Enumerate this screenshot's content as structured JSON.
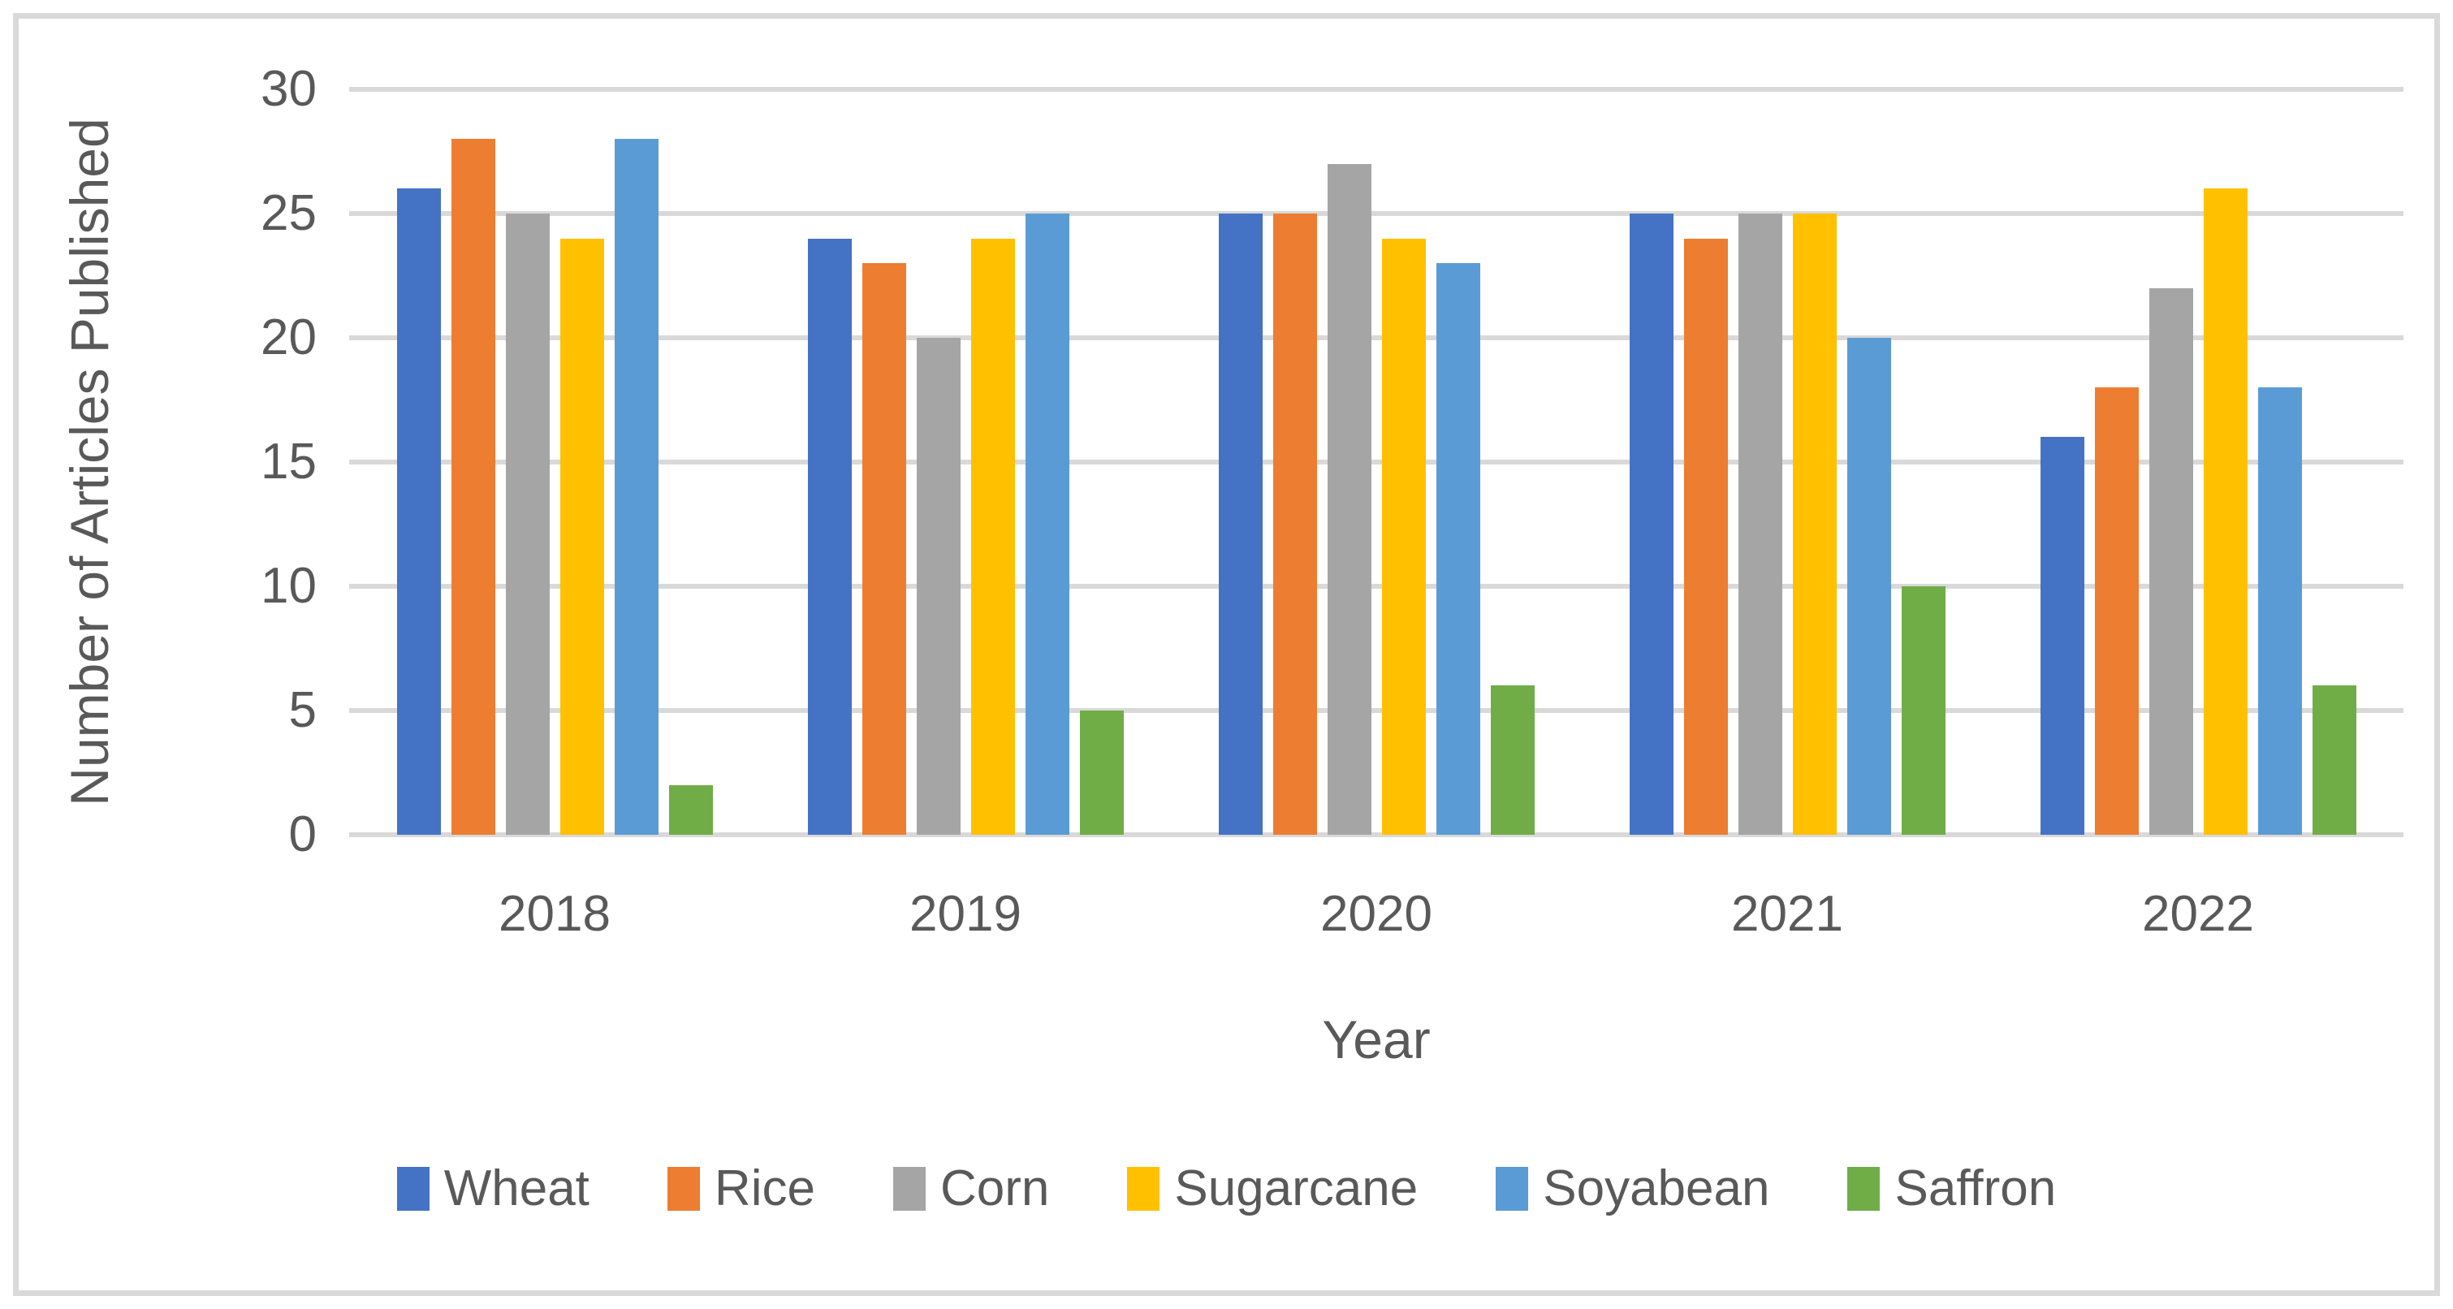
{
  "chart_data": {
    "type": "bar",
    "title": "",
    "xlabel": "Year",
    "ylabel": "Number of Articles Published",
    "categories": [
      "2018",
      "2019",
      "2020",
      "2021",
      "2022"
    ],
    "series": [
      {
        "name": "Wheat",
        "color": "#4472c4",
        "values": [
          26,
          24,
          25,
          25,
          16
        ]
      },
      {
        "name": "Rice",
        "color": "#ed7d31",
        "values": [
          28,
          23,
          25,
          24,
          18
        ]
      },
      {
        "name": "Corn",
        "color": "#a5a5a5",
        "values": [
          25,
          20,
          27,
          25,
          22
        ]
      },
      {
        "name": "Sugarcane",
        "color": "#ffc000",
        "values": [
          24,
          24,
          24,
          25,
          26
        ]
      },
      {
        "name": "Soyabean",
        "color": "#5b9bd5",
        "values": [
          28,
          25,
          23,
          20,
          18
        ]
      },
      {
        "name": "Saffron",
        "color": "#70ad47",
        "values": [
          2,
          5,
          6,
          10,
          6
        ]
      }
    ],
    "ylim": [
      0,
      30
    ],
    "ytick_step": 5,
    "yticks": [
      "0",
      "5",
      "10",
      "15",
      "20",
      "25",
      "30"
    ],
    "grid": "horizontal",
    "legend_position": "bottom",
    "colors": {
      "grid": "#d9d9d9",
      "text": "#595959",
      "frame_border": "#d9d9d9",
      "background": "#ffffff"
    }
  }
}
